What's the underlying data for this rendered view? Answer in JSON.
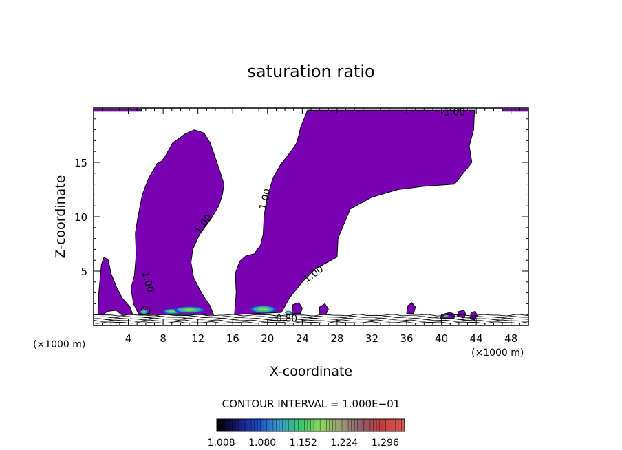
{
  "chart_data": {
    "type": "contour",
    "title": "saturation ratio",
    "xlabel": "X-coordinate",
    "ylabel": "Z-coordinate",
    "x_unit": "(×1000 m)",
    "x_unit_right": "(×1000 m)",
    "xlim": [
      0,
      50
    ],
    "ylim": [
      0,
      20
    ],
    "x_ticks": [
      4,
      8,
      12,
      16,
      20,
      24,
      28,
      32,
      36,
      40,
      44,
      48
    ],
    "y_ticks": [
      5,
      10,
      15
    ],
    "grid": false,
    "fill_color": "#7a00b4",
    "contour_labels": [
      {
        "text": "1.00",
        "x": 6.2,
        "y": 4.0,
        "rot": 75
      },
      {
        "text": "1.00",
        "x": 12.7,
        "y": 9.3,
        "rot": -55
      },
      {
        "text": "1.00",
        "x": 19.8,
        "y": 11.6,
        "rot": -75
      },
      {
        "text": "1.00",
        "x": 25.3,
        "y": 4.7,
        "rot": -35
      },
      {
        "text": "1.00",
        "x": 41.5,
        "y": 19.6,
        "rot": 0
      },
      {
        "text": "0.80",
        "x": 22.2,
        "y": 0.6,
        "rot": 0
      }
    ],
    "regions": [
      {
        "name": "left-small-plume",
        "points": [
          [
            0.5,
            1.0
          ],
          [
            0.6,
            3.0
          ],
          [
            0.9,
            5.6
          ],
          [
            1.2,
            6.3
          ],
          [
            1.7,
            6.0
          ],
          [
            2.0,
            4.8
          ],
          [
            2.6,
            3.6
          ],
          [
            3.3,
            2.5
          ],
          [
            4.2,
            1.7
          ],
          [
            4.5,
            1.0
          ],
          [
            3.2,
            1.0
          ],
          [
            2.6,
            1.4
          ],
          [
            1.6,
            1.3
          ],
          [
            1.1,
            1.0
          ]
        ]
      },
      {
        "name": "left-main-plume",
        "points": [
          [
            5.2,
            1.0
          ],
          [
            4.6,
            2.0
          ],
          [
            4.3,
            3.4
          ],
          [
            4.7,
            4.6
          ],
          [
            4.9,
            6.5
          ],
          [
            4.8,
            8.5
          ],
          [
            5.1,
            10.0
          ],
          [
            5.6,
            12.0
          ],
          [
            6.3,
            13.5
          ],
          [
            7.3,
            14.9
          ],
          [
            7.8,
            15.1
          ],
          [
            8.2,
            15.5
          ],
          [
            9.1,
            16.8
          ],
          [
            10.5,
            17.6
          ],
          [
            11.6,
            18.0
          ],
          [
            12.7,
            17.7
          ],
          [
            13.4,
            16.8
          ],
          [
            14.1,
            15.2
          ],
          [
            14.6,
            14.0
          ],
          [
            15.0,
            13.0
          ],
          [
            14.8,
            12.0
          ],
          [
            14.4,
            11.0
          ],
          [
            13.5,
            9.8
          ],
          [
            12.2,
            8.4
          ],
          [
            11.4,
            7.0
          ],
          [
            11.2,
            5.8
          ],
          [
            11.5,
            4.4
          ],
          [
            12.4,
            3.0
          ],
          [
            13.4,
            1.8
          ],
          [
            13.8,
            1.0
          ]
        ]
      },
      {
        "name": "central-plume",
        "points": [
          [
            16.2,
            1.0
          ],
          [
            16.4,
            3.0
          ],
          [
            16.3,
            4.8
          ],
          [
            16.8,
            5.9
          ],
          [
            17.5,
            6.4
          ],
          [
            18.5,
            6.6
          ],
          [
            19.2,
            7.4
          ],
          [
            19.5,
            8.4
          ],
          [
            19.6,
            10.0
          ],
          [
            19.9,
            11.6
          ],
          [
            20.6,
            13.5
          ],
          [
            21.5,
            14.8
          ],
          [
            22.5,
            15.8
          ],
          [
            23.3,
            16.7
          ],
          [
            23.6,
            17.5
          ],
          [
            23.8,
            18.2
          ],
          [
            24.3,
            19.2
          ],
          [
            24.6,
            19.8
          ],
          [
            43.8,
            19.8
          ],
          [
            43.7,
            18.0
          ],
          [
            43.2,
            16.5
          ],
          [
            43.5,
            15.0
          ],
          [
            42.5,
            14.0
          ],
          [
            41.5,
            13.0
          ],
          [
            38.0,
            12.8
          ],
          [
            35.0,
            12.5
          ],
          [
            32.0,
            11.8
          ],
          [
            29.5,
            10.7
          ],
          [
            28.1,
            8.0
          ],
          [
            28.0,
            6.3
          ],
          [
            25.5,
            5.2
          ],
          [
            24.0,
            4.0
          ],
          [
            22.5,
            2.5
          ],
          [
            21.6,
            1.2
          ]
        ]
      },
      {
        "name": "top-left-strip",
        "points": [
          [
            0.0,
            19.7
          ],
          [
            5.5,
            19.7
          ],
          [
            5.5,
            19.9
          ],
          [
            0.0,
            19.9
          ]
        ]
      },
      {
        "name": "top-right-strip",
        "points": [
          [
            47.0,
            19.7
          ],
          [
            50.0,
            19.7
          ],
          [
            50.0,
            19.9
          ],
          [
            47.0,
            19.9
          ]
        ]
      },
      {
        "name": "cell-1",
        "points": [
          [
            5.4,
            1.1
          ],
          [
            5.5,
            1.6
          ],
          [
            6.0,
            1.8
          ],
          [
            6.5,
            1.5
          ],
          [
            6.4,
            1.1
          ]
        ]
      },
      {
        "name": "cell-2",
        "points": [
          [
            22.8,
            1.1
          ],
          [
            22.9,
            1.9
          ],
          [
            23.6,
            2.1
          ],
          [
            24.0,
            1.6
          ],
          [
            23.8,
            1.1
          ]
        ]
      },
      {
        "name": "cell-3",
        "points": [
          [
            25.9,
            1.0
          ],
          [
            26.0,
            1.7
          ],
          [
            26.6,
            2.0
          ],
          [
            27.0,
            1.5
          ],
          [
            26.7,
            1.0
          ]
        ]
      },
      {
        "name": "cell-4",
        "points": [
          [
            36.0,
            1.1
          ],
          [
            36.1,
            1.8
          ],
          [
            36.6,
            2.1
          ],
          [
            37.0,
            1.7
          ],
          [
            36.8,
            1.1
          ]
        ]
      },
      {
        "name": "cell-5",
        "points": [
          [
            39.9,
            0.7
          ],
          [
            40.0,
            1.0
          ],
          [
            41.0,
            1.2
          ],
          [
            41.6,
            1.0
          ],
          [
            41.4,
            0.6
          ]
        ]
      },
      {
        "name": "cell-6",
        "points": [
          [
            41.8,
            0.9
          ],
          [
            42.0,
            1.3
          ],
          [
            42.6,
            1.4
          ],
          [
            42.8,
            1.0
          ],
          [
            42.5,
            0.7
          ]
        ]
      },
      {
        "name": "cell-7",
        "points": [
          [
            43.3,
            0.6
          ],
          [
            43.4,
            1.2
          ],
          [
            43.9,
            1.3
          ],
          [
            44.1,
            0.9
          ],
          [
            43.8,
            0.5
          ]
        ]
      }
    ],
    "hot_cells": [
      {
        "cx": 5.8,
        "cy": 1.25,
        "rx": 0.5,
        "ry": 0.2
      },
      {
        "cx": 9.0,
        "cy": 1.3,
        "rx": 1.0,
        "ry": 0.25
      },
      {
        "cx": 11.0,
        "cy": 1.45,
        "rx": 1.8,
        "ry": 0.3
      },
      {
        "cx": 19.5,
        "cy": 1.5,
        "rx": 1.5,
        "ry": 0.35
      },
      {
        "cx": 22.4,
        "cy": 1.2,
        "rx": 0.4,
        "ry": 0.15
      },
      {
        "cx": 40.5,
        "cy": 0.9,
        "rx": 0.4,
        "ry": 0.15
      }
    ],
    "colorbar": {
      "title": "CONTOUR INTERVAL = 1.000E−01",
      "min": 1.0,
      "max": 1.33,
      "tick_values": [
        1.008,
        1.08,
        1.152,
        1.224,
        1.296
      ],
      "tick_labels": [
        "1.008",
        "1.080",
        "1.152",
        "1.224",
        "1.296"
      ],
      "stops": [
        "#000000",
        "#1a1a7a",
        "#1c4fc8",
        "#3aa0c8",
        "#38c870",
        "#8ad65a",
        "#9c9c7a",
        "#8c5a6a",
        "#c83c3c",
        "#d85a5a"
      ]
    }
  }
}
